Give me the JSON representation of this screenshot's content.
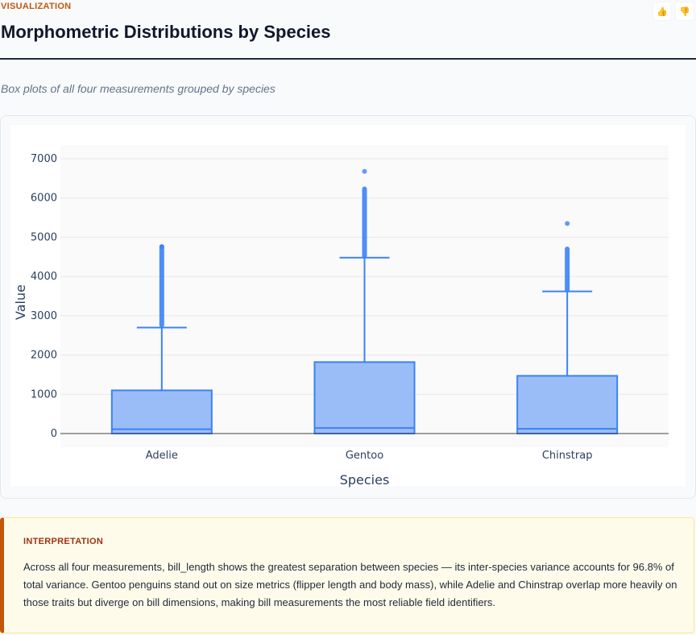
{
  "header": {
    "eyebrow": "VISUALIZATION",
    "title": "Morphometric Distributions by Species",
    "subtitle": "Box plots of all four measurements grouped by species",
    "thumbs_up": "👍",
    "thumbs_down": "👎"
  },
  "chart_data": {
    "type": "box",
    "title": "",
    "xlabel": "Species",
    "ylabel": "Value",
    "ylim": [
      0,
      7000
    ],
    "yticks": [
      0,
      1000,
      2000,
      3000,
      4000,
      5000,
      6000,
      7000
    ],
    "grid": true,
    "color": "#3b82f6",
    "categories": [
      "Adelie",
      "Gentoo",
      "Chinstrap"
    ],
    "boxes": [
      {
        "name": "Adelie",
        "min": 0,
        "q1": 0,
        "median": 110,
        "q3": 1100,
        "whisker_high": 2700,
        "outliers_from": 2760,
        "outliers_to": 4760,
        "max": 4760
      },
      {
        "name": "Gentoo",
        "min": 0,
        "q1": 0,
        "median": 140,
        "q3": 1820,
        "whisker_high": 4480,
        "outliers_from": 4520,
        "outliers_to": 6230,
        "max": 6680
      },
      {
        "name": "Chinstrap",
        "min": 0,
        "q1": 0,
        "median": 120,
        "q3": 1470,
        "whisker_high": 3620,
        "outliers_from": 3660,
        "outliers_to": 4700,
        "max": 5350
      }
    ]
  },
  "interpretation": {
    "heading": "INTERPRETATION",
    "body": "Across all four measurements, bill_length shows the greatest separation between species — its inter-species variance accounts for 96.8% of total variance. Gentoo penguins stand out on size metrics (flipper length and body mass), while Adelie and Chinstrap overlap more heavily on those traits but diverge on bill dimensions, making bill measurements the most reliable field identifiers."
  }
}
